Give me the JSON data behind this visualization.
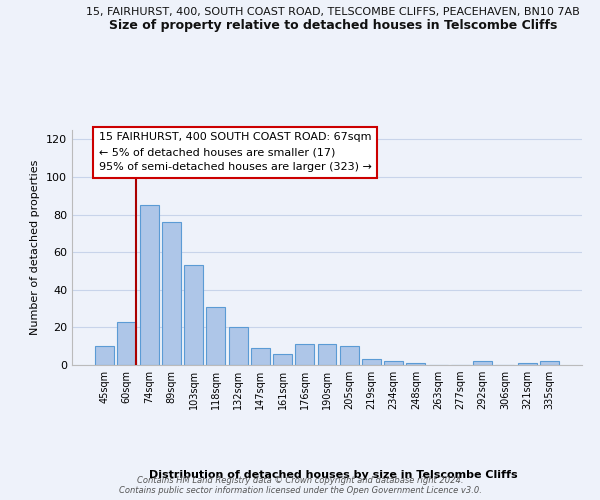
{
  "title_top": "15, FAIRHURST, 400, SOUTH COAST ROAD, TELSCOMBE CLIFFS, PEACEHAVEN, BN10 7AB",
  "title_main": "Size of property relative to detached houses in Telscombe Cliffs",
  "xlabel": "Distribution of detached houses by size in Telscombe Cliffs",
  "ylabel": "Number of detached properties",
  "bar_labels": [
    "45sqm",
    "60sqm",
    "74sqm",
    "89sqm",
    "103sqm",
    "118sqm",
    "132sqm",
    "147sqm",
    "161sqm",
    "176sqm",
    "190sqm",
    "205sqm",
    "219sqm",
    "234sqm",
    "248sqm",
    "263sqm",
    "277sqm",
    "292sqm",
    "306sqm",
    "321sqm",
    "335sqm"
  ],
  "bar_values": [
    10,
    23,
    85,
    76,
    53,
    31,
    20,
    9,
    6,
    11,
    11,
    10,
    3,
    2,
    1,
    0,
    0,
    2,
    0,
    1,
    2
  ],
  "bar_color": "#aec6e8",
  "bar_edge_color": "#5b9bd5",
  "ylim": [
    0,
    125
  ],
  "yticks": [
    0,
    20,
    40,
    60,
    80,
    100,
    120
  ],
  "vline_color": "#aa0000",
  "annotation_box_text": "15 FAIRHURST, 400 SOUTH COAST ROAD: 67sqm\n← 5% of detached houses are smaller (17)\n95% of semi-detached houses are larger (323) →",
  "footer_text": "Contains HM Land Registry data © Crown copyright and database right 2024.\nContains public sector information licensed under the Open Government Licence v3.0.",
  "background_color": "#eef2fa",
  "grid_color": "#c8d4ea"
}
